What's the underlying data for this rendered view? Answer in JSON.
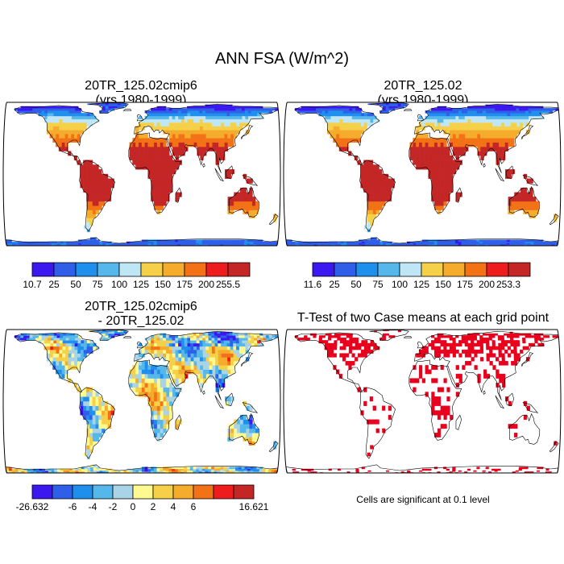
{
  "figure": {
    "title": "ANN FSA (W/m^2)"
  },
  "panels": {
    "p1": {
      "line1": "20TR_125.02cmip6",
      "line2": "(yrs 1980-1999)"
    },
    "p2": {
      "line1": "20TR_125.02",
      "line2": "(yrs 1980-1999)"
    },
    "p3": {
      "line1": "20TR_125.02cmip6",
      "line2": "- 20TR_125.02"
    },
    "p4": {
      "line1": "T-Test of two Case means at each grid point"
    }
  },
  "note": "Cells are significant at 0.1 level",
  "colors": {
    "abs": [
      "#3b18f0",
      "#2f5fe8",
      "#1f8fee",
      "#56b8ea",
      "#bfe6f4",
      "#f5d048",
      "#f5ab2b",
      "#f37215",
      "#ee1c1c",
      "#c42626"
    ],
    "diff": [
      "#3b18f0",
      "#2f5fe8",
      "#1f8fee",
      "#56b8ea",
      "#a9d3e6",
      "#fffa90",
      "#f5d048",
      "#f5ab2b",
      "#f37215",
      "#ee1c1c",
      "#c42626"
    ],
    "ttest": "#e8001c",
    "land_outline": "#000000"
  },
  "chart_data": [
    {
      "type": "heatmap",
      "panel": "p1",
      "colorbar_labels": [
        "10.7",
        "25",
        "50",
        "75",
        "100",
        "125",
        "150",
        "175",
        "200",
        "255.5"
      ],
      "levels": [
        10.7,
        25,
        50,
        75,
        100,
        125,
        150,
        175,
        200,
        255.5
      ]
    },
    {
      "type": "heatmap",
      "panel": "p2",
      "colorbar_labels": [
        "11.6",
        "25",
        "50",
        "75",
        "100",
        "125",
        "150",
        "175",
        "200",
        "253.3"
      ],
      "levels": [
        11.6,
        25,
        50,
        75,
        100,
        125,
        150,
        175,
        200,
        253.3
      ]
    },
    {
      "type": "heatmap",
      "panel": "p3",
      "colorbar_labels": [
        "-26.632",
        "-6",
        "-4",
        "-2",
        "0",
        "2",
        "4",
        "6",
        "16.621"
      ],
      "levels": [
        -26.632,
        -6,
        -4,
        -2,
        0,
        2,
        4,
        6,
        16.621
      ]
    },
    {
      "type": "heatmap",
      "panel": "p4"
    }
  ]
}
